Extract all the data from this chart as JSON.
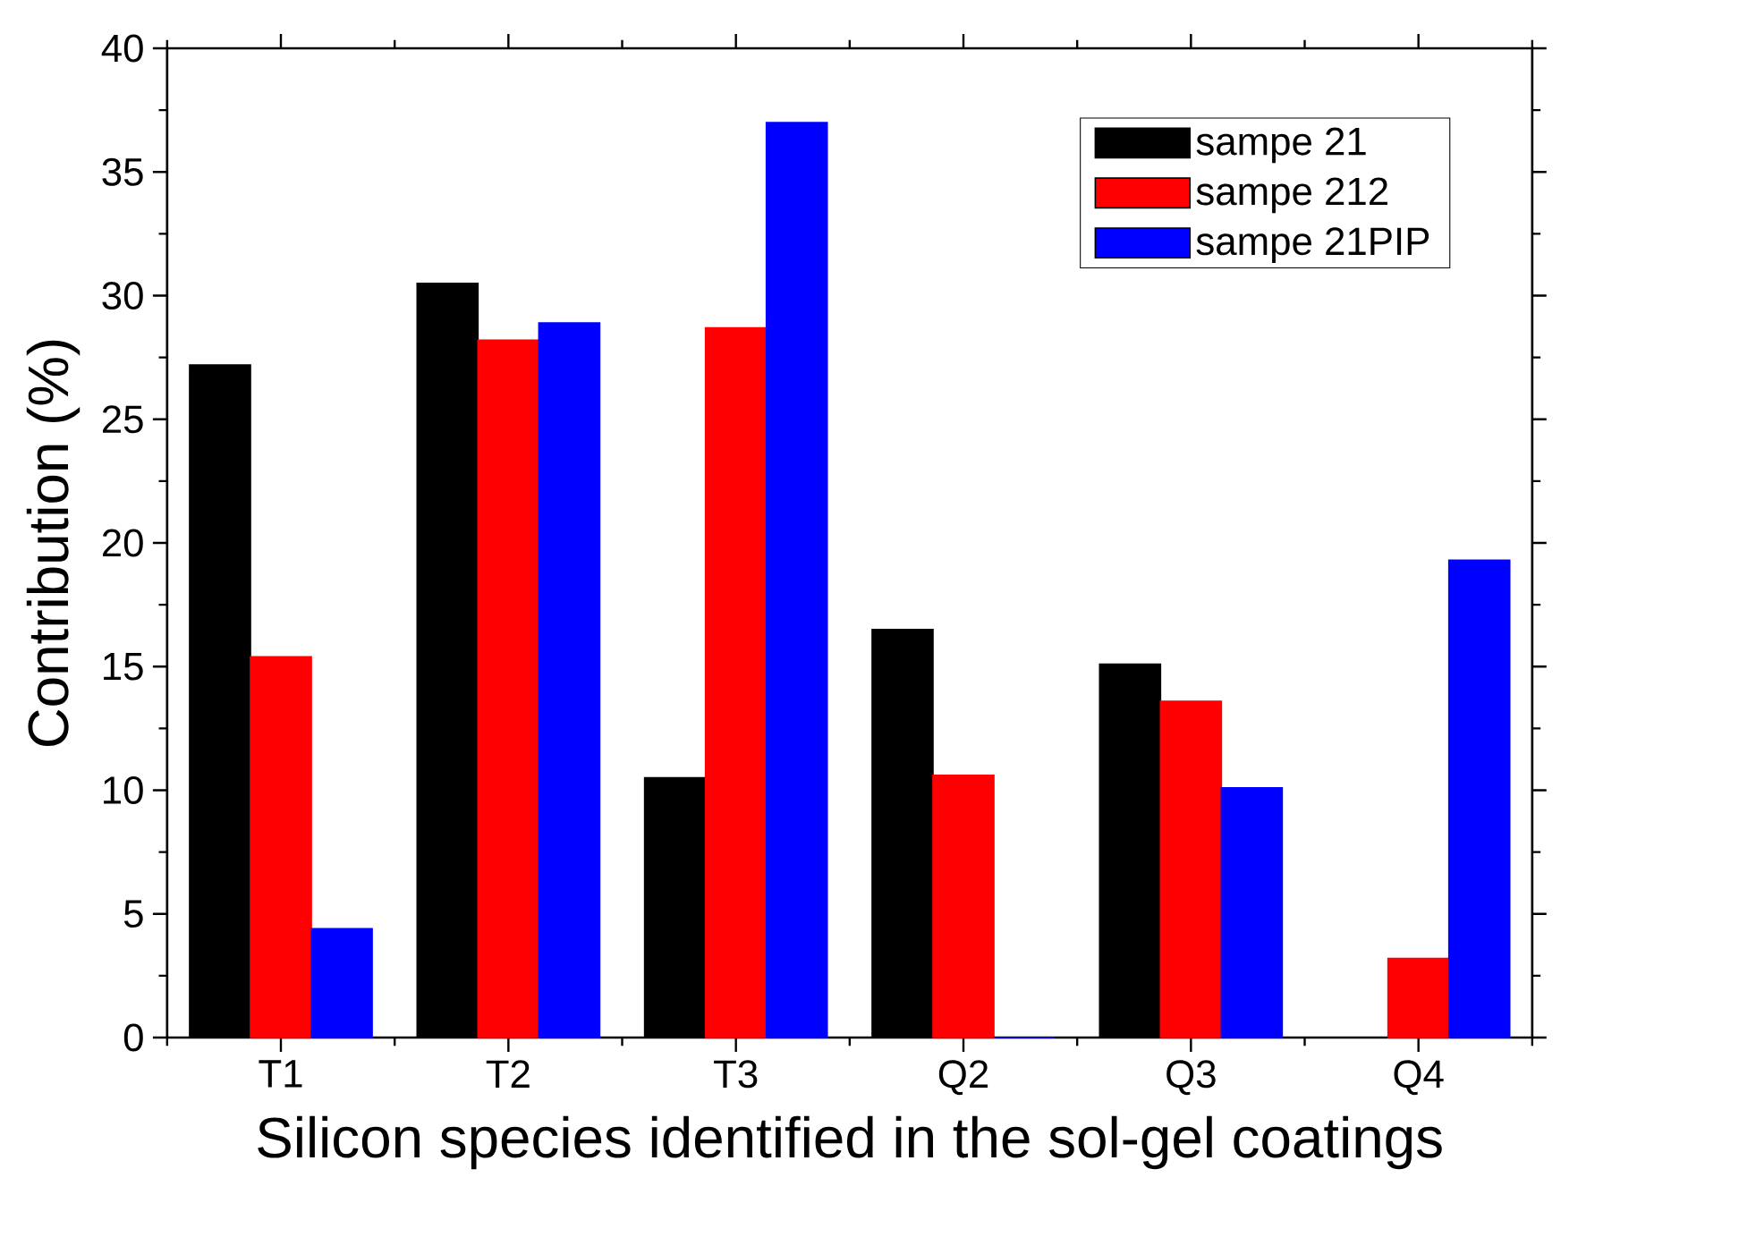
{
  "chart_data": {
    "type": "bar",
    "xlabel": "Silicon species identified in the sol-gel coatings",
    "ylabel": "Contribution (%)",
    "categories": [
      "T1",
      "T2",
      "T3",
      "Q2",
      "Q3",
      "Q4"
    ],
    "series": [
      {
        "name": "sampe 21",
        "color": "#000000",
        "values": [
          27.2,
          30.5,
          10.5,
          16.5,
          15.1,
          0
        ]
      },
      {
        "name": "sampe 212",
        "color": "#ff0000",
        "values": [
          15.4,
          28.2,
          28.7,
          10.6,
          13.6,
          3.2
        ]
      },
      {
        "name": "sampe 21PIP",
        "color": "#0000ff",
        "values": [
          4.4,
          28.9,
          37.0,
          0,
          10.1,
          19.3
        ]
      }
    ],
    "ylim": [
      0,
      40
    ],
    "yticks": [
      0,
      5,
      10,
      15,
      20,
      25,
      30,
      35,
      40
    ],
    "legend": "top right",
    "grid": false
  }
}
